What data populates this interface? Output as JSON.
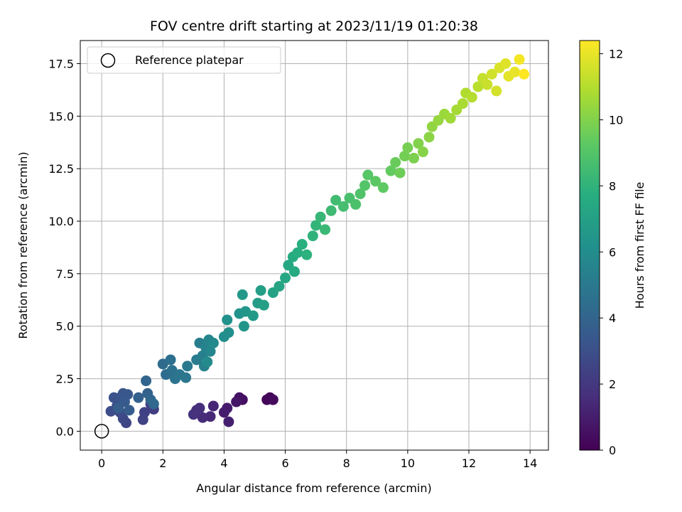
{
  "chart_data": {
    "type": "scatter",
    "title": "FOV centre drift starting at 2023/11/19 01:20:38",
    "xlabel": "Angular distance from reference (arcmin)",
    "ylabel": "Rotation from reference (arcmin)",
    "xlim": [
      -0.7,
      14.6
    ],
    "ylim": [
      -0.9,
      18.6
    ],
    "xticks": [
      0,
      2,
      4,
      6,
      8,
      10,
      12,
      14
    ],
    "xtick_labels": [
      "0",
      "2",
      "4",
      "6",
      "8",
      "10",
      "12",
      "14"
    ],
    "yticks": [
      0,
      2.5,
      5,
      7.5,
      10,
      12.5,
      15,
      17.5
    ],
    "ytick_labels": [
      "0.0",
      "2.5",
      "5.0",
      "7.5",
      "10.0",
      "12.5",
      "15.0",
      "17.5"
    ],
    "grid": true,
    "legend": {
      "placement": "top-left",
      "entries": [
        "Reference platepar"
      ]
    },
    "reference_point": {
      "x": 0,
      "y": 0,
      "label": "Reference platepar"
    },
    "colorbar": {
      "label": "Hours from first FF file",
      "range": [
        0,
        12.4
      ],
      "ticks": [
        0,
        2,
        4,
        6,
        8,
        10,
        12
      ],
      "tick_labels": [
        "0",
        "2",
        "4",
        "6",
        "8",
        "10",
        "12"
      ],
      "colormap": "viridis"
    },
    "points": [
      {
        "x": 5.4,
        "y": 1.5,
        "c": 0.1
      },
      {
        "x": 5.5,
        "y": 1.6,
        "c": 0.2
      },
      {
        "x": 5.6,
        "y": 1.5,
        "c": 0.3
      },
      {
        "x": 4.6,
        "y": 1.5,
        "c": 0.5
      },
      {
        "x": 4.5,
        "y": 1.6,
        "c": 0.6
      },
      {
        "x": 4.4,
        "y": 1.4,
        "c": 0.7
      },
      {
        "x": 4.1,
        "y": 1.1,
        "c": 0.9
      },
      {
        "x": 4.0,
        "y": 0.9,
        "c": 1.0
      },
      {
        "x": 4.15,
        "y": 0.45,
        "c": 1.1
      },
      {
        "x": 3.65,
        "y": 1.2,
        "c": 1.3
      },
      {
        "x": 3.55,
        "y": 0.7,
        "c": 1.4
      },
      {
        "x": 3.3,
        "y": 0.65,
        "c": 1.5
      },
      {
        "x": 3.2,
        "y": 1.1,
        "c": 1.6
      },
      {
        "x": 3.1,
        "y": 1.0,
        "c": 1.7
      },
      {
        "x": 3.0,
        "y": 0.8,
        "c": 1.8
      },
      {
        "x": 1.7,
        "y": 1.05,
        "c": 2.2
      },
      {
        "x": 1.6,
        "y": 1.3,
        "c": 2.3
      },
      {
        "x": 1.4,
        "y": 0.9,
        "c": 2.4
      },
      {
        "x": 1.35,
        "y": 0.55,
        "c": 2.5
      },
      {
        "x": 0.8,
        "y": 0.4,
        "c": 2.6
      },
      {
        "x": 0.7,
        "y": 0.6,
        "c": 2.7
      },
      {
        "x": 0.6,
        "y": 0.9,
        "c": 2.8
      },
      {
        "x": 0.3,
        "y": 0.95,
        "c": 2.9
      },
      {
        "x": 0.5,
        "y": 1.2,
        "c": 3.0
      },
      {
        "x": 0.4,
        "y": 1.6,
        "c": 3.1
      },
      {
        "x": 0.6,
        "y": 1.6,
        "c": 3.2
      },
      {
        "x": 0.7,
        "y": 1.8,
        "c": 3.3
      },
      {
        "x": 0.85,
        "y": 1.75,
        "c": 3.4
      },
      {
        "x": 0.75,
        "y": 1.4,
        "c": 3.5
      },
      {
        "x": 0.9,
        "y": 1.0,
        "c": 3.6
      },
      {
        "x": 0.55,
        "y": 1.1,
        "c": 3.7
      },
      {
        "x": 1.2,
        "y": 1.6,
        "c": 3.8
      },
      {
        "x": 1.5,
        "y": 1.8,
        "c": 3.9
      },
      {
        "x": 1.45,
        "y": 2.4,
        "c": 4.0
      },
      {
        "x": 1.6,
        "y": 1.5,
        "c": 4.1
      },
      {
        "x": 1.7,
        "y": 1.3,
        "c": 4.2
      },
      {
        "x": 2.0,
        "y": 3.2,
        "c": 4.3
      },
      {
        "x": 2.1,
        "y": 2.7,
        "c": 4.4
      },
      {
        "x": 2.25,
        "y": 3.4,
        "c": 4.5
      },
      {
        "x": 2.3,
        "y": 2.9,
        "c": 4.6
      },
      {
        "x": 2.4,
        "y": 2.5,
        "c": 4.7
      },
      {
        "x": 2.55,
        "y": 2.7,
        "c": 4.8
      },
      {
        "x": 2.75,
        "y": 2.55,
        "c": 4.9
      },
      {
        "x": 2.8,
        "y": 3.1,
        "c": 5.0
      },
      {
        "x": 3.1,
        "y": 3.4,
        "c": 5.1
      },
      {
        "x": 3.2,
        "y": 4.2,
        "c": 5.2
      },
      {
        "x": 3.3,
        "y": 3.6,
        "c": 5.3
      },
      {
        "x": 3.35,
        "y": 3.1,
        "c": 5.4
      },
      {
        "x": 3.4,
        "y": 4.0,
        "c": 5.5
      },
      {
        "x": 3.5,
        "y": 4.35,
        "c": 5.6
      },
      {
        "x": 3.55,
        "y": 3.8,
        "c": 5.7
      },
      {
        "x": 3.65,
        "y": 4.2,
        "c": 5.8
      },
      {
        "x": 3.45,
        "y": 3.3,
        "c": 5.9
      },
      {
        "x": 4.0,
        "y": 4.5,
        "c": 6.0
      },
      {
        "x": 4.15,
        "y": 4.7,
        "c": 6.1
      },
      {
        "x": 4.1,
        "y": 5.3,
        "c": 6.2
      },
      {
        "x": 4.5,
        "y": 5.6,
        "c": 6.3
      },
      {
        "x": 4.65,
        "y": 5.0,
        "c": 6.4
      },
      {
        "x": 4.7,
        "y": 5.7,
        "c": 6.5
      },
      {
        "x": 4.6,
        "y": 6.5,
        "c": 6.6
      },
      {
        "x": 4.95,
        "y": 5.5,
        "c": 6.7
      },
      {
        "x": 5.1,
        "y": 6.1,
        "c": 6.8
      },
      {
        "x": 5.2,
        "y": 6.7,
        "c": 6.9
      },
      {
        "x": 5.3,
        "y": 6.0,
        "c": 7.0
      },
      {
        "x": 5.6,
        "y": 6.6,
        "c": 7.1
      },
      {
        "x": 5.8,
        "y": 6.9,
        "c": 7.2
      },
      {
        "x": 6.0,
        "y": 7.3,
        "c": 7.3
      },
      {
        "x": 6.1,
        "y": 7.9,
        "c": 7.4
      },
      {
        "x": 6.3,
        "y": 7.6,
        "c": 7.5
      },
      {
        "x": 6.25,
        "y": 8.3,
        "c": 7.6
      },
      {
        "x": 6.4,
        "y": 8.5,
        "c": 7.7
      },
      {
        "x": 6.55,
        "y": 8.9,
        "c": 7.8
      },
      {
        "x": 6.7,
        "y": 8.4,
        "c": 7.9
      },
      {
        "x": 6.9,
        "y": 9.3,
        "c": 8.0
      },
      {
        "x": 7.0,
        "y": 9.8,
        "c": 8.1
      },
      {
        "x": 7.15,
        "y": 10.2,
        "c": 8.2
      },
      {
        "x": 7.3,
        "y": 9.6,
        "c": 8.3
      },
      {
        "x": 7.5,
        "y": 10.5,
        "c": 8.4
      },
      {
        "x": 7.65,
        "y": 11.0,
        "c": 8.5
      },
      {
        "x": 7.9,
        "y": 10.7,
        "c": 8.6
      },
      {
        "x": 8.1,
        "y": 11.1,
        "c": 8.7
      },
      {
        "x": 8.3,
        "y": 10.8,
        "c": 8.8
      },
      {
        "x": 8.45,
        "y": 11.3,
        "c": 8.9
      },
      {
        "x": 8.6,
        "y": 11.7,
        "c": 9.0
      },
      {
        "x": 8.7,
        "y": 12.2,
        "c": 9.1
      },
      {
        "x": 8.95,
        "y": 11.9,
        "c": 9.2
      },
      {
        "x": 9.2,
        "y": 11.6,
        "c": 9.3
      },
      {
        "x": 9.45,
        "y": 12.4,
        "c": 9.4
      },
      {
        "x": 9.6,
        "y": 12.8,
        "c": 9.5
      },
      {
        "x": 9.75,
        "y": 12.3,
        "c": 9.6
      },
      {
        "x": 9.9,
        "y": 13.1,
        "c": 9.7
      },
      {
        "x": 10.0,
        "y": 13.5,
        "c": 9.8
      },
      {
        "x": 10.2,
        "y": 13.0,
        "c": 9.9
      },
      {
        "x": 10.35,
        "y": 13.7,
        "c": 10.0
      },
      {
        "x": 10.5,
        "y": 13.3,
        "c": 10.1
      },
      {
        "x": 10.7,
        "y": 14.0,
        "c": 10.2
      },
      {
        "x": 10.8,
        "y": 14.5,
        "c": 10.3
      },
      {
        "x": 11.0,
        "y": 14.8,
        "c": 10.4
      },
      {
        "x": 11.2,
        "y": 15.1,
        "c": 10.5
      },
      {
        "x": 11.4,
        "y": 14.9,
        "c": 10.6
      },
      {
        "x": 11.6,
        "y": 15.3,
        "c": 10.7
      },
      {
        "x": 11.8,
        "y": 15.6,
        "c": 10.8
      },
      {
        "x": 11.9,
        "y": 16.1,
        "c": 10.9
      },
      {
        "x": 12.1,
        "y": 15.9,
        "c": 11.0
      },
      {
        "x": 12.3,
        "y": 16.4,
        "c": 11.1
      },
      {
        "x": 12.45,
        "y": 16.8,
        "c": 11.3
      },
      {
        "x": 12.6,
        "y": 16.5,
        "c": 11.4
      },
      {
        "x": 12.75,
        "y": 17.0,
        "c": 11.5
      },
      {
        "x": 12.9,
        "y": 16.2,
        "c": 11.6
      },
      {
        "x": 13.0,
        "y": 17.3,
        "c": 11.7
      },
      {
        "x": 13.2,
        "y": 17.5,
        "c": 11.8
      },
      {
        "x": 13.3,
        "y": 16.9,
        "c": 11.9
      },
      {
        "x": 13.5,
        "y": 17.1,
        "c": 12.0
      },
      {
        "x": 13.65,
        "y": 17.7,
        "c": 12.2
      },
      {
        "x": 13.8,
        "y": 17.0,
        "c": 12.4
      }
    ]
  }
}
